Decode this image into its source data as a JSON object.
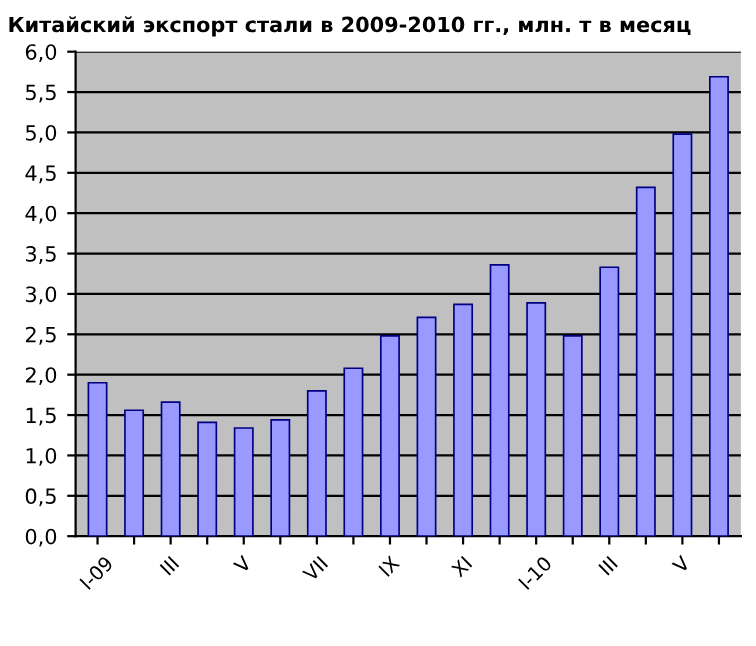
{
  "chart_data": {
    "type": "bar",
    "title": "Китайский экспорт стали в 2009-2010 гг., млн. т в месяц",
    "categories": [
      "I-09",
      null,
      "III",
      null,
      "V",
      null,
      "VII",
      null,
      "IX",
      null,
      "XI",
      null,
      "I-10",
      null,
      "III",
      null,
      "V",
      null
    ],
    "values": [
      1.9,
      1.56,
      1.66,
      1.41,
      1.34,
      1.44,
      1.8,
      2.08,
      2.48,
      2.71,
      2.87,
      3.36,
      2.89,
      2.48,
      3.33,
      4.32,
      4.98,
      5.69
    ],
    "color": "#9999ff",
    "ylim": [
      0,
      6
    ],
    "yticks": [
      {
        "value": 0,
        "label": "0,0"
      },
      {
        "value": 0.5,
        "label": "0,5"
      },
      {
        "value": 1,
        "label": "1,0"
      },
      {
        "value": 1.5,
        "label": "1,5"
      },
      {
        "value": 2,
        "label": "2,0"
      },
      {
        "value": 2.5,
        "label": "2,5"
      },
      {
        "value": 3,
        "label": "3,0"
      },
      {
        "value": 3.5,
        "label": "3,5"
      },
      {
        "value": 4,
        "label": "4,0"
      },
      {
        "value": 4.5,
        "label": "4,5"
      },
      {
        "value": 5,
        "label": "5,0"
      },
      {
        "value": 5.5,
        "label": "5,5"
      },
      {
        "value": 6,
        "label": "6,0"
      }
    ],
    "grid": "y"
  }
}
